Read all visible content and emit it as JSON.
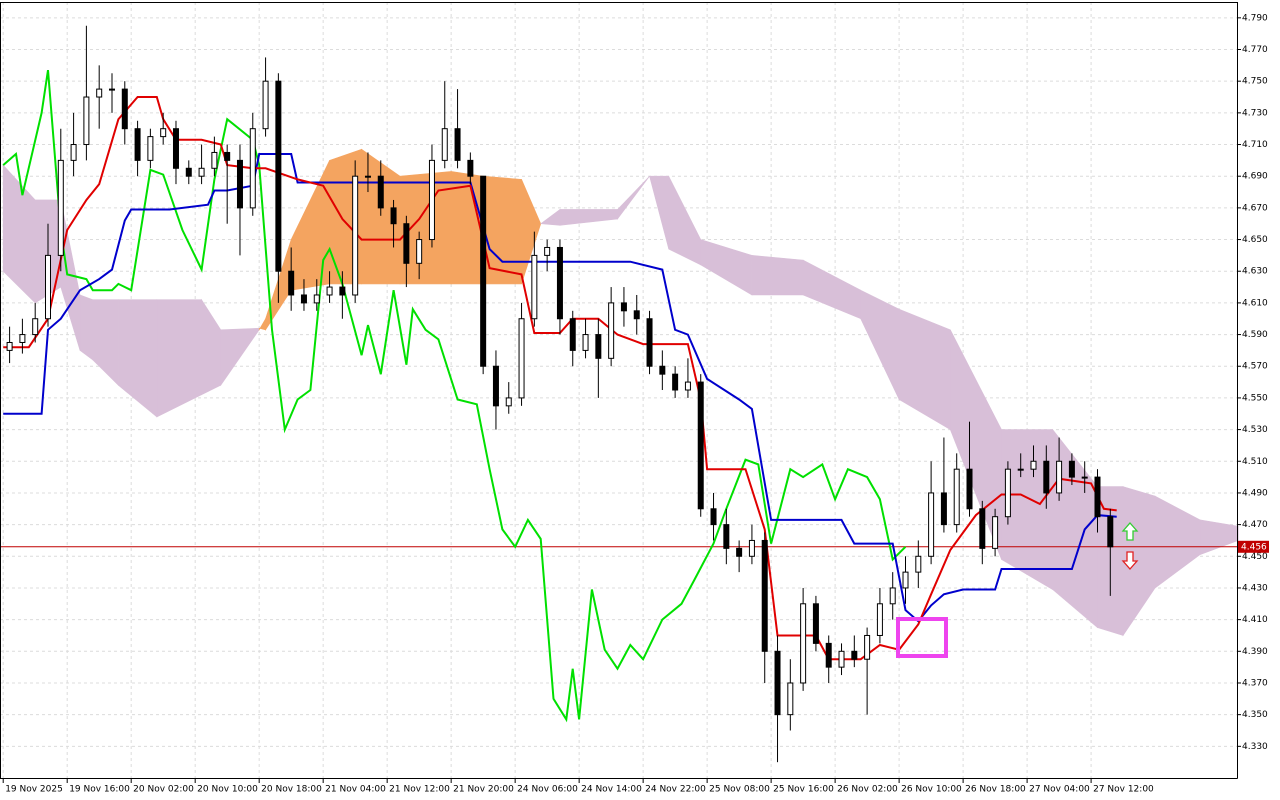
{
  "chart_data": {
    "type": "candlestick",
    "xlim": [
      -0.5,
      192.8
    ],
    "xticks": [
      {
        "value": 0,
        "label": "19 Nov 2025"
      },
      {
        "value": 10,
        "label": "19 Nov 16:00"
      },
      {
        "value": 20,
        "label": "20 Nov 02:00"
      },
      {
        "value": 30,
        "label": "20 Nov 10:00"
      },
      {
        "value": 40,
        "label": "20 Nov 18:00"
      },
      {
        "value": 50,
        "label": "21 Nov 04:00"
      },
      {
        "value": 60,
        "label": "21 Nov 12:00"
      },
      {
        "value": 70,
        "label": "21 Nov 20:00"
      },
      {
        "value": 80,
        "label": "24 Nov 06:00"
      },
      {
        "value": 90,
        "label": "24 Nov 14:00"
      },
      {
        "value": 100,
        "label": "24 Nov 22:00"
      },
      {
        "value": 110,
        "label": "25 Nov 08:00"
      },
      {
        "value": 120,
        "label": "25 Nov 16:00"
      },
      {
        "value": 130,
        "label": "26 Nov 02:00"
      },
      {
        "value": 140,
        "label": "26 Nov 10:00"
      },
      {
        "value": 150,
        "label": "26 Nov 18:00"
      },
      {
        "value": 160,
        "label": "27 Nov 04:00"
      },
      {
        "value": 170,
        "label": "27 Nov 12:00"
      }
    ],
    "ylim": [
      4.31,
      4.8
    ],
    "yticks": [
      {
        "value": 4.33,
        "label": "4.330"
      },
      {
        "value": 4.35,
        "label": "4.350"
      },
      {
        "value": 4.37,
        "label": "4.370"
      },
      {
        "value": 4.39,
        "label": "4.390"
      },
      {
        "value": 4.41,
        "label": "4.410"
      },
      {
        "value": 4.43,
        "label": "4.430"
      },
      {
        "value": 4.45,
        "label": "4.450"
      },
      {
        "value": 4.47,
        "label": "4.470"
      },
      {
        "value": 4.49,
        "label": "4.490"
      },
      {
        "value": 4.51,
        "label": "4.510"
      },
      {
        "value": 4.53,
        "label": "4.530"
      },
      {
        "value": 4.55,
        "label": "4.550"
      },
      {
        "value": 4.57,
        "label": "4.570"
      },
      {
        "value": 4.59,
        "label": "4.590"
      },
      {
        "value": 4.61,
        "label": "4.610"
      },
      {
        "value": 4.63,
        "label": "4.630"
      },
      {
        "value": 4.65,
        "label": "4.650"
      },
      {
        "value": 4.67,
        "label": "4.670"
      },
      {
        "value": 4.69,
        "label": "4.690"
      },
      {
        "value": 4.71,
        "label": "4.710"
      },
      {
        "value": 4.73,
        "label": "4.730"
      },
      {
        "value": 4.75,
        "label": "4.750"
      },
      {
        "value": 4.77,
        "label": "4.770"
      },
      {
        "value": 4.79,
        "label": "4.790"
      }
    ],
    "grid": true,
    "last_price": {
      "value": 4.456,
      "label": "4.456",
      "color": "#c00000"
    },
    "cloud": {
      "up_color": "#f4a460",
      "down_color": "#d8bfd8",
      "x": [
        0,
        5,
        9,
        12,
        14,
        18,
        24,
        31,
        34,
        40,
        41,
        45,
        51,
        56,
        62,
        70,
        75,
        81,
        84,
        87,
        96,
        101,
        104,
        109,
        117,
        125,
        134,
        140,
        148,
        156,
        164,
        171,
        175,
        180,
        187,
        193
      ],
      "span_a": [
        4.63,
        4.61,
        4.62,
        4.58,
        4.574,
        4.558,
        4.538,
        4.552,
        4.558,
        4.593,
        4.6,
        4.65,
        4.7,
        4.707,
        4.69,
        4.693,
        4.69,
        4.688,
        4.66,
        4.659,
        4.663,
        4.69,
        4.644,
        4.634,
        4.615,
        4.615,
        4.6,
        4.549,
        4.53,
        4.448,
        4.429,
        4.405,
        4.4,
        4.43,
        4.451,
        4.46
      ],
      "span_b": [
        4.697,
        4.675,
        4.675,
        4.615,
        4.612,
        4.612,
        4.612,
        4.612,
        4.593,
        4.594,
        4.593,
        4.618,
        4.622,
        4.622,
        4.622,
        4.622,
        4.622,
        4.622,
        4.66,
        4.669,
        4.669,
        4.69,
        4.69,
        4.65,
        4.64,
        4.637,
        4.618,
        4.606,
        4.593,
        4.53,
        4.53,
        4.494,
        4.494,
        4.488,
        4.473,
        4.469
      ]
    },
    "lines": [
      {
        "color": "#00e000",
        "x": [
          0,
          2,
          3,
          6,
          7,
          9,
          10,
          13,
          14,
          17,
          18,
          20,
          23,
          25,
          28,
          31,
          33,
          35,
          39,
          40,
          42,
          44,
          46,
          48,
          50,
          51,
          53,
          56,
          57,
          59,
          61,
          63,
          64,
          66,
          68,
          71,
          74,
          76,
          78,
          80,
          82,
          84,
          86,
          88,
          89,
          90,
          92,
          94,
          96,
          98,
          100,
          103,
          106,
          108,
          111,
          113,
          116,
          118,
          120,
          123,
          125,
          128,
          130,
          132,
          135,
          137,
          139,
          141
        ],
        "values": [
          4.697,
          4.704,
          4.678,
          4.73,
          4.757,
          4.656,
          4.628,
          4.625,
          4.618,
          4.618,
          4.622,
          4.618,
          4.694,
          4.691,
          4.656,
          4.631,
          4.688,
          4.726,
          4.713,
          4.697,
          4.593,
          4.53,
          4.549,
          4.555,
          4.637,
          4.644,
          4.622,
          4.577,
          4.596,
          4.565,
          4.618,
          4.571,
          4.606,
          4.593,
          4.587,
          4.549,
          4.546,
          4.505,
          4.467,
          4.456,
          4.473,
          4.461,
          4.36,
          4.347,
          4.379,
          4.347,
          4.429,
          4.391,
          4.379,
          4.394,
          4.385,
          4.41,
          4.42,
          4.435,
          4.458,
          4.48,
          4.511,
          4.508,
          4.458,
          4.505,
          4.5,
          4.508,
          4.486,
          4.505,
          4.5,
          4.486,
          4.448,
          4.456
        ]
      },
      {
        "color": "#0000cc",
        "x": [
          0,
          6,
          7,
          9,
          12,
          15,
          17,
          19,
          20,
          26,
          32,
          33,
          35,
          39,
          40,
          45,
          46,
          51,
          73,
          76,
          78,
          98,
          103,
          105,
          107,
          110,
          115,
          117,
          120,
          131,
          133,
          139,
          141,
          143,
          145,
          147,
          150,
          155,
          156,
          167,
          169,
          171,
          174
        ],
        "values": [
          4.54,
          4.54,
          4.593,
          4.6,
          4.618,
          4.625,
          4.631,
          4.662,
          4.669,
          4.669,
          4.672,
          4.681,
          4.681,
          4.684,
          4.704,
          4.704,
          4.686,
          4.686,
          4.686,
          4.644,
          4.636,
          4.636,
          4.631,
          4.593,
          4.59,
          4.562,
          4.549,
          4.543,
          4.473,
          4.473,
          4.458,
          4.458,
          4.416,
          4.409,
          4.419,
          4.426,
          4.429,
          4.429,
          4.442,
          4.442,
          4.467,
          4.476,
          4.475
        ]
      },
      {
        "color": "#e00000",
        "x": [
          0,
          4,
          7,
          10,
          13,
          15,
          18,
          21,
          24,
          25,
          27,
          31,
          34,
          35,
          39,
          41,
          46,
          50,
          53,
          56,
          62,
          65,
          68,
          73,
          76,
          81,
          83,
          87,
          89,
          93,
          96,
          100,
          107,
          109,
          110,
          116,
          119,
          121,
          127,
          129,
          134,
          137,
          140,
          143,
          145,
          148,
          152,
          156,
          159,
          162,
          165,
          170,
          172,
          174
        ],
        "values": [
          4.582,
          4.582,
          4.6,
          4.656,
          4.675,
          4.685,
          4.726,
          4.74,
          4.74,
          4.726,
          4.713,
          4.713,
          4.71,
          4.697,
          4.695,
          4.695,
          4.688,
          4.684,
          4.663,
          4.65,
          4.65,
          4.663,
          4.681,
          4.684,
          4.632,
          4.628,
          4.591,
          4.591,
          4.6,
          4.6,
          4.59,
          4.584,
          4.584,
          4.549,
          4.505,
          4.505,
          4.467,
          4.4,
          4.4,
          4.385,
          4.385,
          4.394,
          4.391,
          4.407,
          4.426,
          4.454,
          4.476,
          4.489,
          4.489,
          4.483,
          4.499,
          4.496,
          4.48,
          4.479
        ]
      }
    ],
    "candles": [
      [
        1,
        4.58,
        4.595,
        4.572,
        4.585
      ],
      [
        3,
        4.585,
        4.6,
        4.578,
        4.59
      ],
      [
        5,
        4.59,
        4.61,
        4.585,
        4.6
      ],
      [
        7,
        4.6,
        4.66,
        4.595,
        4.64
      ],
      [
        9,
        4.64,
        4.72,
        4.63,
        4.7
      ],
      [
        11,
        4.7,
        4.73,
        4.69,
        4.71
      ],
      [
        13,
        4.71,
        4.785,
        4.7,
        4.74
      ],
      [
        15,
        4.74,
        4.76,
        4.72,
        4.745
      ],
      [
        17,
        4.745,
        4.755,
        4.73,
        4.745
      ],
      [
        19,
        4.745,
        4.75,
        4.71,
        4.72
      ],
      [
        21,
        4.72,
        4.725,
        4.69,
        4.7
      ],
      [
        23,
        4.7,
        4.72,
        4.695,
        4.715
      ],
      [
        25,
        4.715,
        4.73,
        4.71,
        4.72
      ],
      [
        27,
        4.72,
        4.725,
        4.685,
        4.695
      ],
      [
        29,
        4.695,
        4.7,
        4.685,
        4.69
      ],
      [
        31,
        4.69,
        4.71,
        4.685,
        4.695
      ],
      [
        33,
        4.695,
        4.715,
        4.69,
        4.705
      ],
      [
        35,
        4.705,
        4.71,
        4.66,
        4.7
      ],
      [
        37,
        4.7,
        4.71,
        4.64,
        4.67
      ],
      [
        39,
        4.67,
        4.73,
        4.665,
        4.72
      ],
      [
        41,
        4.72,
        4.765,
        4.715,
        4.75
      ],
      [
        43,
        4.75,
        4.755,
        4.61,
        4.63
      ],
      [
        45,
        4.63,
        4.645,
        4.605,
        4.615
      ],
      [
        47,
        4.615,
        4.625,
        4.605,
        4.61
      ],
      [
        49,
        4.61,
        4.625,
        4.605,
        4.615
      ],
      [
        51,
        4.615,
        4.63,
        4.61,
        4.62
      ],
      [
        53,
        4.62,
        4.63,
        4.6,
        4.615
      ],
      [
        55,
        4.615,
        4.7,
        4.61,
        4.69
      ],
      [
        57,
        4.69,
        4.705,
        4.68,
        4.69
      ],
      [
        59,
        4.69,
        4.7,
        4.665,
        4.67
      ],
      [
        61,
        4.67,
        4.675,
        4.645,
        4.66
      ],
      [
        63,
        4.66,
        4.665,
        4.62,
        4.635
      ],
      [
        65,
        4.635,
        4.655,
        4.625,
        4.65
      ],
      [
        67,
        4.65,
        4.71,
        4.645,
        4.7
      ],
      [
        69,
        4.7,
        4.75,
        4.695,
        4.72
      ],
      [
        71,
        4.72,
        4.745,
        4.695,
        4.7
      ],
      [
        73,
        4.7,
        4.705,
        4.685,
        4.69
      ],
      [
        75,
        4.69,
        4.69,
        4.565,
        4.57
      ],
      [
        77,
        4.57,
        4.58,
        4.53,
        4.545
      ],
      [
        79,
        4.545,
        4.56,
        4.54,
        4.55
      ],
      [
        81,
        4.55,
        4.61,
        4.545,
        4.6
      ],
      [
        83,
        4.6,
        4.655,
        4.595,
        4.64
      ],
      [
        85,
        4.64,
        4.65,
        4.63,
        4.645
      ],
      [
        87,
        4.645,
        4.65,
        4.59,
        4.6
      ],
      [
        89,
        4.6,
        4.605,
        4.57,
        4.58
      ],
      [
        91,
        4.58,
        4.6,
        4.575,
        4.59
      ],
      [
        93,
        4.59,
        4.6,
        4.55,
        4.575
      ],
      [
        95,
        4.575,
        4.62,
        4.57,
        4.61
      ],
      [
        97,
        4.61,
        4.62,
        4.595,
        4.605
      ],
      [
        99,
        4.605,
        4.615,
        4.59,
        4.6
      ],
      [
        101,
        4.6,
        4.605,
        4.565,
        4.57
      ],
      [
        103,
        4.57,
        4.58,
        4.555,
        4.565
      ],
      [
        105,
        4.565,
        4.57,
        4.55,
        4.555
      ],
      [
        107,
        4.555,
        4.575,
        4.55,
        4.56
      ],
      [
        109,
        4.56,
        4.565,
        4.475,
        4.48
      ],
      [
        111,
        4.48,
        4.49,
        4.46,
        4.47
      ],
      [
        113,
        4.47,
        4.48,
        4.445,
        4.455
      ],
      [
        115,
        4.455,
        4.46,
        4.44,
        4.45
      ],
      [
        117,
        4.45,
        4.47,
        4.445,
        4.46
      ],
      [
        119,
        4.46,
        4.465,
        4.37,
        4.39
      ],
      [
        121,
        4.39,
        4.4,
        4.32,
        4.35
      ],
      [
        123,
        4.35,
        4.385,
        4.34,
        4.37
      ],
      [
        125,
        4.37,
        4.43,
        4.365,
        4.42
      ],
      [
        127,
        4.42,
        4.425,
        4.39,
        4.395
      ],
      [
        129,
        4.395,
        4.4,
        4.37,
        4.38
      ],
      [
        131,
        4.38,
        4.395,
        4.375,
        4.39
      ],
      [
        133,
        4.39,
        4.4,
        4.38,
        4.385
      ],
      [
        135,
        4.385,
        4.405,
        4.35,
        4.4
      ],
      [
        137,
        4.4,
        4.43,
        4.395,
        4.42
      ],
      [
        139,
        4.42,
        4.44,
        4.41,
        4.43
      ],
      [
        141,
        4.43,
        4.45,
        4.42,
        4.44
      ],
      [
        143,
        4.44,
        4.46,
        4.43,
        4.45
      ],
      [
        145,
        4.45,
        4.51,
        4.445,
        4.49
      ],
      [
        147,
        4.49,
        4.525,
        4.465,
        4.47
      ],
      [
        149,
        4.47,
        4.515,
        4.465,
        4.505
      ],
      [
        151,
        4.505,
        4.535,
        4.475,
        4.48
      ],
      [
        153,
        4.48,
        4.485,
        4.445,
        4.455
      ],
      [
        155,
        4.455,
        4.48,
        4.45,
        4.475
      ],
      [
        157,
        4.475,
        4.51,
        4.47,
        4.505
      ],
      [
        159,
        4.505,
        4.515,
        4.5,
        4.505
      ],
      [
        161,
        4.505,
        4.52,
        4.5,
        4.51
      ],
      [
        163,
        4.51,
        4.52,
        4.48,
        4.49
      ],
      [
        165,
        4.49,
        4.525,
        4.485,
        4.51
      ],
      [
        167,
        4.51,
        4.515,
        4.495,
        4.5
      ],
      [
        169,
        4.5,
        4.51,
        4.49,
        4.5
      ],
      [
        171,
        4.5,
        4.505,
        4.465,
        4.475
      ],
      [
        173,
        4.475,
        4.48,
        4.425,
        4.456
      ]
    ]
  }
}
